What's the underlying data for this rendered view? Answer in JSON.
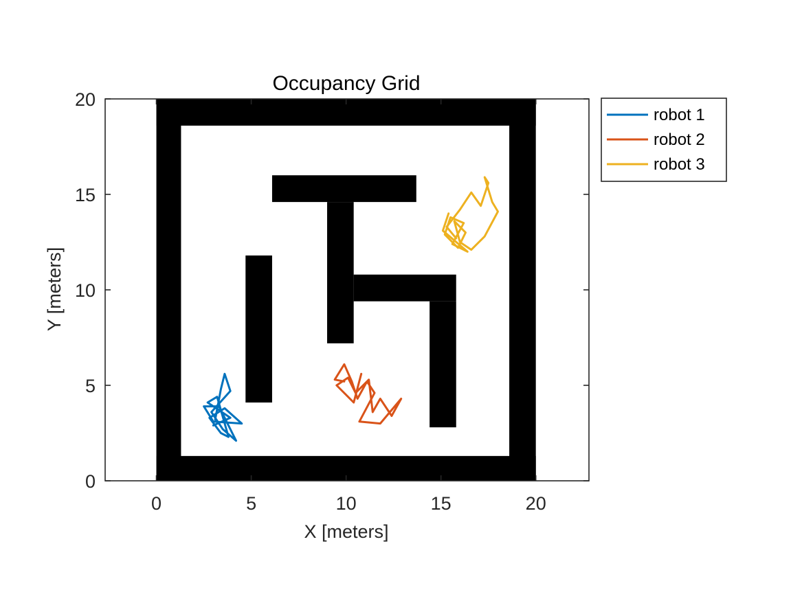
{
  "chart_data": {
    "type": "line",
    "title": "Occupancy Grid",
    "xlabel": "X [meters]",
    "ylabel": "Y [meters]",
    "xlim": [
      -2.7,
      22.8
    ],
    "ylim": [
      0,
      20
    ],
    "xticks": [
      0,
      5,
      10,
      15,
      20
    ],
    "yticks": [
      0,
      5,
      10,
      15,
      20
    ],
    "grid": false,
    "legend_position": "outside-top-right",
    "obstacles": [
      {
        "x0": 0,
        "x1": 20,
        "y0": 0,
        "y1": 1.3
      },
      {
        "x0": 0,
        "x1": 20,
        "y0": 18.6,
        "y1": 20
      },
      {
        "x0": 0,
        "x1": 1.3,
        "y0": 0,
        "y1": 20
      },
      {
        "x0": 18.6,
        "x1": 20,
        "y0": 0,
        "y1": 20
      },
      {
        "x0": 6.1,
        "x1": 13.7,
        "y0": 14.6,
        "y1": 16.0
      },
      {
        "x0": 9.0,
        "x1": 10.4,
        "y0": 7.2,
        "y1": 14.6
      },
      {
        "x0": 10.4,
        "x1": 15.8,
        "y0": 9.4,
        "y1": 10.8
      },
      {
        "x0": 14.4,
        "x1": 15.8,
        "y0": 2.8,
        "y1": 9.4
      },
      {
        "x0": 4.7,
        "x1": 6.1,
        "y0": 4.1,
        "y1": 11.8
      }
    ],
    "series": [
      {
        "name": "robot 1",
        "color": "#0072BD",
        "points": [
          [
            3.1,
            3.2
          ],
          [
            3.4,
            4.8
          ],
          [
            3.6,
            5.6
          ],
          [
            3.9,
            4.7
          ],
          [
            2.9,
            3.6
          ],
          [
            3.5,
            2.7
          ],
          [
            4.2,
            2.1
          ],
          [
            3.3,
            3.9
          ],
          [
            2.5,
            3.9
          ],
          [
            3.0,
            3.1
          ],
          [
            4.5,
            3.0
          ],
          [
            3.6,
            3.8
          ],
          [
            2.8,
            3.3
          ],
          [
            3.4,
            2.5
          ],
          [
            3.8,
            2.3
          ],
          [
            3.2,
            4.4
          ],
          [
            2.7,
            4.1
          ],
          [
            3.9,
            3.3
          ],
          [
            3.0,
            2.9
          ]
        ]
      },
      {
        "name": "robot 2",
        "color": "#D95319",
        "points": [
          [
            9.9,
            5.2
          ],
          [
            9.4,
            5.3
          ],
          [
            9.9,
            6.1
          ],
          [
            10.3,
            5.2
          ],
          [
            10.6,
            4.3
          ],
          [
            11.1,
            5.2
          ],
          [
            11.5,
            4.6
          ],
          [
            10.7,
            3.1
          ],
          [
            11.8,
            3.0
          ],
          [
            12.9,
            4.3
          ],
          [
            12.4,
            3.4
          ],
          [
            11.8,
            4.3
          ],
          [
            11.4,
            3.6
          ],
          [
            11.2,
            5.3
          ],
          [
            10.5,
            4.6
          ],
          [
            10.1,
            5.4
          ],
          [
            9.5,
            5.0
          ],
          [
            10.4,
            4.1
          ],
          [
            10.8,
            5.6
          ]
        ]
      },
      {
        "name": "robot 3",
        "color": "#EDB120",
        "points": [
          [
            15.8,
            12.7
          ],
          [
            15.3,
            13.3
          ],
          [
            16.0,
            14.2
          ],
          [
            16.6,
            15.1
          ],
          [
            17.1,
            14.4
          ],
          [
            17.5,
            15.6
          ],
          [
            17.3,
            15.9
          ],
          [
            17.7,
            14.6
          ],
          [
            18.0,
            14.1
          ],
          [
            17.3,
            12.8
          ],
          [
            16.6,
            12.1
          ],
          [
            16.0,
            12.5
          ],
          [
            15.7,
            13.6
          ],
          [
            16.3,
            13.0
          ],
          [
            15.9,
            12.2
          ],
          [
            15.2,
            12.9
          ],
          [
            15.5,
            13.8
          ],
          [
            16.2,
            13.5
          ],
          [
            15.6,
            12.4
          ],
          [
            16.4,
            12.0
          ],
          [
            15.1,
            13.1
          ],
          [
            15.4,
            14.0
          ]
        ]
      }
    ]
  }
}
